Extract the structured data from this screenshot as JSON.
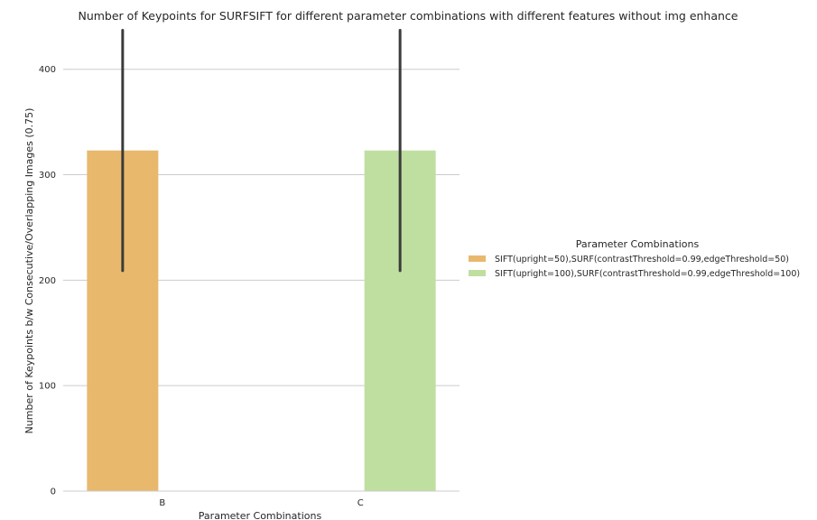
{
  "chart_data": {
    "type": "bar",
    "title": "Number of Keypoints for SURFSIFT for different parameter combinations with different features without img enhance",
    "xlabel": "Parameter Combinations",
    "ylabel": "Number of Keypoints b/w Consecutive/Overlapping Images (0.75)",
    "categories": [
      "B",
      "C"
    ],
    "ylim": [
      0,
      440
    ],
    "yticks": [
      0,
      100,
      200,
      300,
      400
    ],
    "grid": "horizontal",
    "legend_position": "right",
    "legend_title": "Parameter Combinations",
    "series": [
      {
        "name": "SIFT(upright=50),SURF(contrastThreshold=0.99,edgeThreshold=50)",
        "color": "#E8B86D",
        "category": "B",
        "value": 323,
        "error_low": 209,
        "error_high": 437
      },
      {
        "name": "SIFT(upright=100),SURF(contrastThreshold=0.99,edgeThreshold=100)",
        "color": "#BFDFA0",
        "category": "C",
        "value": 323,
        "error_low": 209,
        "error_high": 437
      }
    ]
  }
}
